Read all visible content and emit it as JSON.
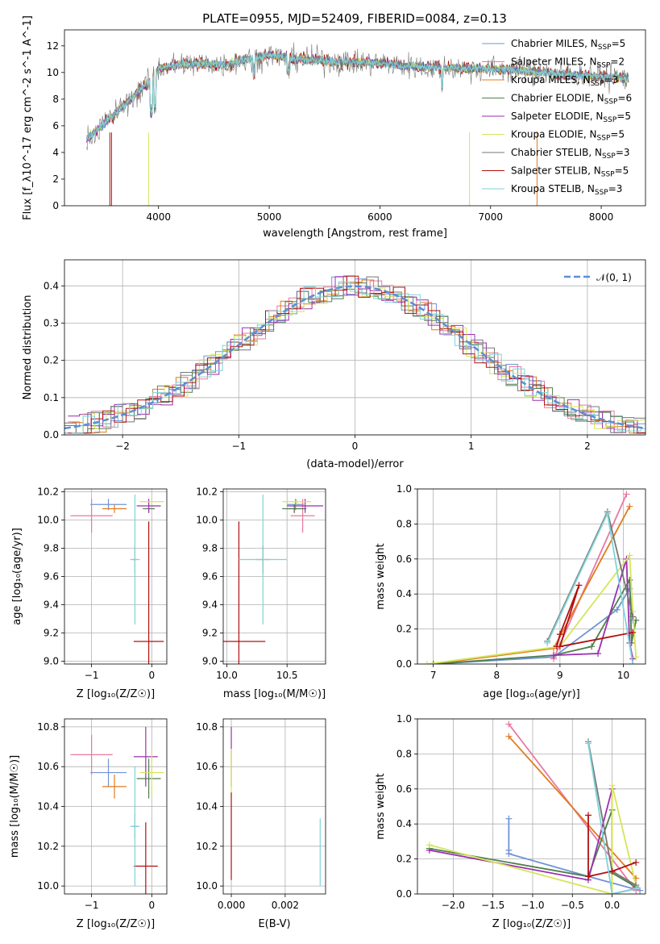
{
  "figure": {
    "title": "PLATE=0955, MJD=52409, FIBERID=0084, z=0.13"
  },
  "colors": {
    "chabrier_miles": "#6f93d6",
    "salpeter_miles": "#e8799f",
    "kroupa_miles": "#e07b1e",
    "chabrier_elodie": "#4f7f4f",
    "salpeter_elodie": "#9b2fae",
    "kroupa_elodie": "#d5e55a",
    "chabrier_stelib": "#777777",
    "salpeter_stelib": "#b01010",
    "kroupa_stelib": "#7fd3d9",
    "normal": "#5b8ed6",
    "grid": "#b0b0b0"
  },
  "chart_data": [
    {
      "id": "spectrum",
      "type": "line",
      "title": "PLATE=0955, MJD=52409, FIBERID=0084, z=0.13",
      "xlabel": "wavelength [Angstrom, rest frame]",
      "ylabel": "Flux [f_λ10^-17 erg cm^-2 s^-1 A^-1]",
      "xlim": [
        3150,
        8400
      ],
      "ylim": [
        0,
        13.2
      ],
      "xticks": [
        4000,
        5000,
        6000,
        7000,
        8000
      ],
      "yticks": [
        0,
        2,
        4,
        6,
        8,
        10,
        12
      ],
      "grid": false,
      "legend_position": "right",
      "legend": [
        {
          "main": "Chabrier MILES, N",
          "sub": "SSP",
          "tail": "=5",
          "color": "chabrier_miles"
        },
        {
          "main": "Salpeter MILES, N",
          "sub": "SSP",
          "tail": "=2",
          "color": "salpeter_miles"
        },
        {
          "main": "Kroupa MILES, N",
          "sub": "SSP",
          "tail": "=3",
          "color": "kroupa_miles"
        },
        {
          "main": "Chabrier ELODIE, N",
          "sub": "SSP",
          "tail": "=6",
          "color": "chabrier_elodie"
        },
        {
          "main": "Salpeter ELODIE, N",
          "sub": "SSP",
          "tail": "=5",
          "color": "salpeter_elodie"
        },
        {
          "main": "Kroupa ELODIE, N",
          "sub": "SSP",
          "tail": "=5",
          "color": "kroupa_elodie"
        },
        {
          "main": "Chabrier STELIB, N",
          "sub": "SSP",
          "tail": "=3",
          "color": "chabrier_stelib"
        },
        {
          "main": "Salpeter STELIB, N",
          "sub": "SSP",
          "tail": "=5",
          "color": "salpeter_stelib"
        },
        {
          "main": "Kroupa STELIB, N",
          "sub": "SSP",
          "tail": "=3",
          "color": "kroupa_stelib"
        }
      ],
      "continuum_x": [
        3350,
        3500,
        3700,
        3900,
        4000,
        4200,
        4400,
        4600,
        4800,
        5000,
        5300,
        5600,
        6000,
        6400,
        6800,
        7200,
        7600,
        8000,
        8200
      ],
      "continuum_y": [
        5.0,
        6.1,
        7.6,
        9.2,
        10.3,
        10.6,
        10.7,
        10.6,
        11.0,
        11.3,
        11.0,
        10.8,
        10.7,
        10.4,
        10.3,
        10.2,
        9.9,
        9.7,
        9.6
      ]
    },
    {
      "id": "residuals",
      "type": "histogram",
      "xlabel": "(data-model)/error",
      "ylabel": "Normed distribution",
      "xlim": [
        -2.5,
        2.5
      ],
      "ylim": [
        0,
        0.47
      ],
      "xticks": [
        -2,
        -1,
        0,
        1,
        2
      ],
      "yticks": [
        0,
        0.1,
        0.2,
        0.3,
        0.4
      ],
      "grid": true,
      "legend_position": "top-right",
      "legend_label": "𝒩(0, 1)"
    },
    {
      "id": "age_vs_Z",
      "type": "errorbar",
      "xlabel": "Z [log₁₀(Z/Z☉)]",
      "ylabel": "age  [log₁₀(age/yr)]",
      "xlim": [
        -1.45,
        0.25
      ],
      "ylim": [
        8.98,
        10.22
      ],
      "xticks": [
        -1,
        0
      ],
      "yticks": [
        9.0,
        9.2,
        9.4,
        9.6,
        9.8,
        10.0,
        10.2
      ],
      "points": [
        {
          "c": "chabrier_miles",
          "x": -0.72,
          "y": 10.11,
          "xe": 0.3,
          "ye": 0.04
        },
        {
          "c": "salpeter_miles",
          "x": -1.0,
          "y": 10.03,
          "xe": 0.35,
          "ye": 0.12
        },
        {
          "c": "kroupa_miles",
          "x": -0.62,
          "y": 10.08,
          "xe": 0.2,
          "ye": 0.03
        },
        {
          "c": "chabrier_elodie",
          "x": -0.05,
          "y": 10.08,
          "xe": 0.1,
          "ye": 0.03
        },
        {
          "c": "salpeter_elodie",
          "x": -0.05,
          "y": 10.1,
          "xe": 0.2,
          "ye": 0.05
        },
        {
          "c": "kroupa_elodie",
          "x": 0.0,
          "y": 10.13,
          "xe": 0.2,
          "ye": 0.02
        },
        {
          "c": "chabrier_stelib",
          "x": -0.28,
          "y": 9.72,
          "xe": 0.05,
          "ye": 0.1
        },
        {
          "c": "salpeter_stelib",
          "x": -0.05,
          "y": 9.14,
          "xe": 0.25,
          "ye": 0.85
        },
        {
          "c": "kroupa_stelib",
          "x": -0.28,
          "y": 9.72,
          "xe": 0.08,
          "ye": 0.46
        }
      ]
    },
    {
      "id": "age_vs_mass",
      "type": "errorbar",
      "xlabel": "mass [log₁₀(M/M☉)]",
      "ylabel": "",
      "xlim": [
        9.97,
        10.82
      ],
      "ylim": [
        8.98,
        10.22
      ],
      "xticks": [
        10.0,
        10.5
      ],
      "yticks": [
        9.0,
        9.2,
        9.4,
        9.6,
        9.8,
        10.0,
        10.2
      ],
      "points": [
        {
          "c": "chabrier_miles",
          "x": 10.57,
          "y": 10.11,
          "xe": 0.07,
          "ye": 0.04
        },
        {
          "c": "salpeter_miles",
          "x": 10.63,
          "y": 10.03,
          "xe": 0.1,
          "ye": 0.12
        },
        {
          "c": "kroupa_miles",
          "x": 10.56,
          "y": 10.08,
          "xe": 0.06,
          "ye": 0.03
        },
        {
          "c": "chabrier_elodie",
          "x": 10.56,
          "y": 10.08,
          "xe": 0.1,
          "ye": 0.03
        },
        {
          "c": "salpeter_elodie",
          "x": 10.65,
          "y": 10.1,
          "xe": 0.15,
          "ye": 0.05
        },
        {
          "c": "kroupa_elodie",
          "x": 10.58,
          "y": 10.13,
          "xe": 0.12,
          "ye": 0.02
        },
        {
          "c": "chabrier_stelib",
          "x": 10.3,
          "y": 9.72,
          "xe": 0.06,
          "ye": 0.1
        },
        {
          "c": "salpeter_stelib",
          "x": 10.1,
          "y": 9.14,
          "xe": 0.22,
          "ye": 0.85
        },
        {
          "c": "kroupa_stelib",
          "x": 10.3,
          "y": 9.72,
          "xe": 0.2,
          "ye": 0.46
        }
      ]
    },
    {
      "id": "weight_vs_age",
      "type": "line",
      "xlabel": "age  [log₁₀(age/yr)]",
      "ylabel": "mass weight",
      "xlim": [
        6.75,
        10.35
      ],
      "ylim": [
        0,
        1.0
      ],
      "xticks": [
        7,
        8,
        9,
        10
      ],
      "yticks": [
        0.0,
        0.2,
        0.4,
        0.6,
        0.8,
        1.0
      ],
      "series": [
        {
          "c": "chabrier_miles",
          "x": [
            7.0,
            8.9,
            9.9,
            10.1,
            10.15
          ],
          "y": [
            0.0,
            0.04,
            0.31,
            0.43,
            0.25
          ]
        },
        {
          "c": "salpeter_miles",
          "x": [
            8.9,
            10.05
          ],
          "y": [
            0.03,
            0.97
          ]
        },
        {
          "c": "kroupa_miles",
          "x": [
            7.0,
            8.9,
            10.1
          ],
          "y": [
            0.0,
            0.09,
            0.9
          ]
        },
        {
          "c": "chabrier_elodie",
          "x": [
            7.0,
            8.9,
            9.5,
            10.1,
            10.13,
            10.2
          ],
          "y": [
            0.0,
            0.05,
            0.1,
            0.48,
            0.12,
            0.25
          ]
        },
        {
          "c": "salpeter_elodie",
          "x": [
            8.9,
            9.6,
            10.05,
            10.1,
            10.15
          ],
          "y": [
            0.05,
            0.06,
            0.6,
            0.12,
            0.03
          ]
        },
        {
          "c": "kroupa_elodie",
          "x": [
            6.9,
            9.0,
            10.1,
            10.15,
            10.2
          ],
          "y": [
            0.0,
            0.1,
            0.62,
            0.3,
            0.04
          ]
        },
        {
          "c": "chabrier_stelib",
          "x": [
            8.8,
            9.75,
            10.15
          ],
          "y": [
            0.13,
            0.87,
            0.27
          ]
        },
        {
          "c": "salpeter_stelib",
          "x": [
            8.95,
            9.0,
            9.3,
            9.0,
            10.15
          ],
          "y": [
            0.1,
            0.17,
            0.45,
            0.1,
            0.18
          ]
        },
        {
          "c": "kroupa_stelib",
          "x": [
            8.8,
            9.75,
            10.15
          ],
          "y": [
            0.12,
            0.86,
            0.0
          ]
        }
      ]
    },
    {
      "id": "mass_vs_Z",
      "type": "errorbar",
      "xlabel": "Z [log₁₀(Z/Z☉)]",
      "ylabel": "mass [log₁₀(M/M☉)]",
      "xlim": [
        -1.45,
        0.25
      ],
      "ylim": [
        9.96,
        10.84
      ],
      "xticks": [
        -1,
        0
      ],
      "yticks": [
        10.0,
        10.2,
        10.4,
        10.6,
        10.8
      ],
      "points": [
        {
          "c": "chabrier_miles",
          "x": -0.72,
          "y": 10.57,
          "xe": 0.3,
          "ye": 0.07
        },
        {
          "c": "salpeter_miles",
          "x": -1.0,
          "y": 10.66,
          "xe": 0.35,
          "ye": 0.1
        },
        {
          "c": "kroupa_miles",
          "x": -0.62,
          "y": 10.5,
          "xe": 0.2,
          "ye": 0.06
        },
        {
          "c": "chabrier_elodie",
          "x": -0.05,
          "y": 10.54,
          "xe": 0.2,
          "ye": 0.1
        },
        {
          "c": "salpeter_elodie",
          "x": -0.1,
          "y": 10.65,
          "xe": 0.2,
          "ye": 0.15
        },
        {
          "c": "kroupa_elodie",
          "x": 0.0,
          "y": 10.57,
          "xe": 0.2,
          "ye": 0.12
        },
        {
          "c": "chabrier_stelib",
          "x": -0.28,
          "y": 10.3,
          "xe": 0.05,
          "ye": 0.06
        },
        {
          "c": "salpeter_stelib",
          "x": -0.1,
          "y": 10.1,
          "xe": 0.2,
          "ye": 0.22
        },
        {
          "c": "kroupa_stelib",
          "x": -0.28,
          "y": 10.3,
          "xe": 0.08,
          "ye": 0.3
        }
      ]
    },
    {
      "id": "mass_vs_ebv",
      "type": "errorbar",
      "xlabel": "E(B-V)",
      "ylabel": "",
      "xlim": [
        -0.0003,
        0.0035
      ],
      "ylim": [
        9.96,
        10.84
      ],
      "xticks": [
        0.0,
        0.002
      ],
      "yticks": [
        10.0,
        10.2,
        10.4,
        10.6,
        10.8
      ],
      "points": [
        {
          "c": "salpeter_elodie",
          "x": 0.0,
          "y": 10.65,
          "xe": 0,
          "ye": 0.15
        },
        {
          "c": "kroupa_elodie",
          "x": 0.0,
          "y": 10.57,
          "xe": 0,
          "ye": 0.12
        },
        {
          "c": "salpeter_stelib",
          "x": 0.0,
          "y": 10.25,
          "xe": 0,
          "ye": 0.22
        },
        {
          "c": "kroupa_stelib",
          "x": 0.0033,
          "y": 10.17,
          "xe": 0,
          "ye": 0.17
        }
      ]
    },
    {
      "id": "weight_vs_Z",
      "type": "line",
      "xlabel": "Z [log₁₀(Z/Z☉)]",
      "ylabel": "mass weight",
      "xlim": [
        -2.45,
        0.42
      ],
      "ylim": [
        0,
        1.0
      ],
      "xticks": [
        -2.0,
        -1.5,
        -1.0,
        -0.5,
        0.0
      ],
      "yticks": [
        0.0,
        0.2,
        0.4,
        0.6,
        0.8,
        1.0
      ],
      "series": [
        {
          "c": "chabrier_miles",
          "x": [
            -1.3,
            -1.3,
            -1.3,
            -0.3,
            0.35
          ],
          "y": [
            0.43,
            0.25,
            0.23,
            0.1,
            0.02
          ]
        },
        {
          "c": "salpeter_miles",
          "x": [
            -1.3,
            0.3
          ],
          "y": [
            0.97,
            0.02
          ]
        },
        {
          "c": "kroupa_miles",
          "x": [
            -1.3,
            0.3
          ],
          "y": [
            0.9,
            0.09
          ]
        },
        {
          "c": "chabrier_elodie",
          "x": [
            -2.3,
            -0.3,
            0.0,
            0.0,
            0.3
          ],
          "y": [
            0.26,
            0.1,
            0.48,
            0.12,
            0.04
          ]
        },
        {
          "c": "salpeter_elodie",
          "x": [
            -2.3,
            -0.3,
            0.0,
            0.0,
            0.3
          ],
          "y": [
            0.25,
            0.08,
            0.6,
            0.0,
            0.03
          ]
        },
        {
          "c": "kroupa_elodie",
          "x": [
            -2.3,
            0.0,
            0.0,
            0.3
          ],
          "y": [
            0.28,
            0.0,
            0.62,
            0.05
          ]
        },
        {
          "c": "chabrier_stelib",
          "x": [
            -0.3,
            0.0,
            0.3
          ],
          "y": [
            0.87,
            0.13,
            0.05
          ]
        },
        {
          "c": "salpeter_stelib",
          "x": [
            -0.3,
            -0.3,
            0.0,
            0.3
          ],
          "y": [
            0.45,
            0.1,
            0.13,
            0.18
          ]
        },
        {
          "c": "kroupa_stelib",
          "x": [
            -0.3,
            0.0,
            0.3
          ],
          "y": [
            0.86,
            0.0,
            0.03
          ]
        }
      ]
    }
  ]
}
